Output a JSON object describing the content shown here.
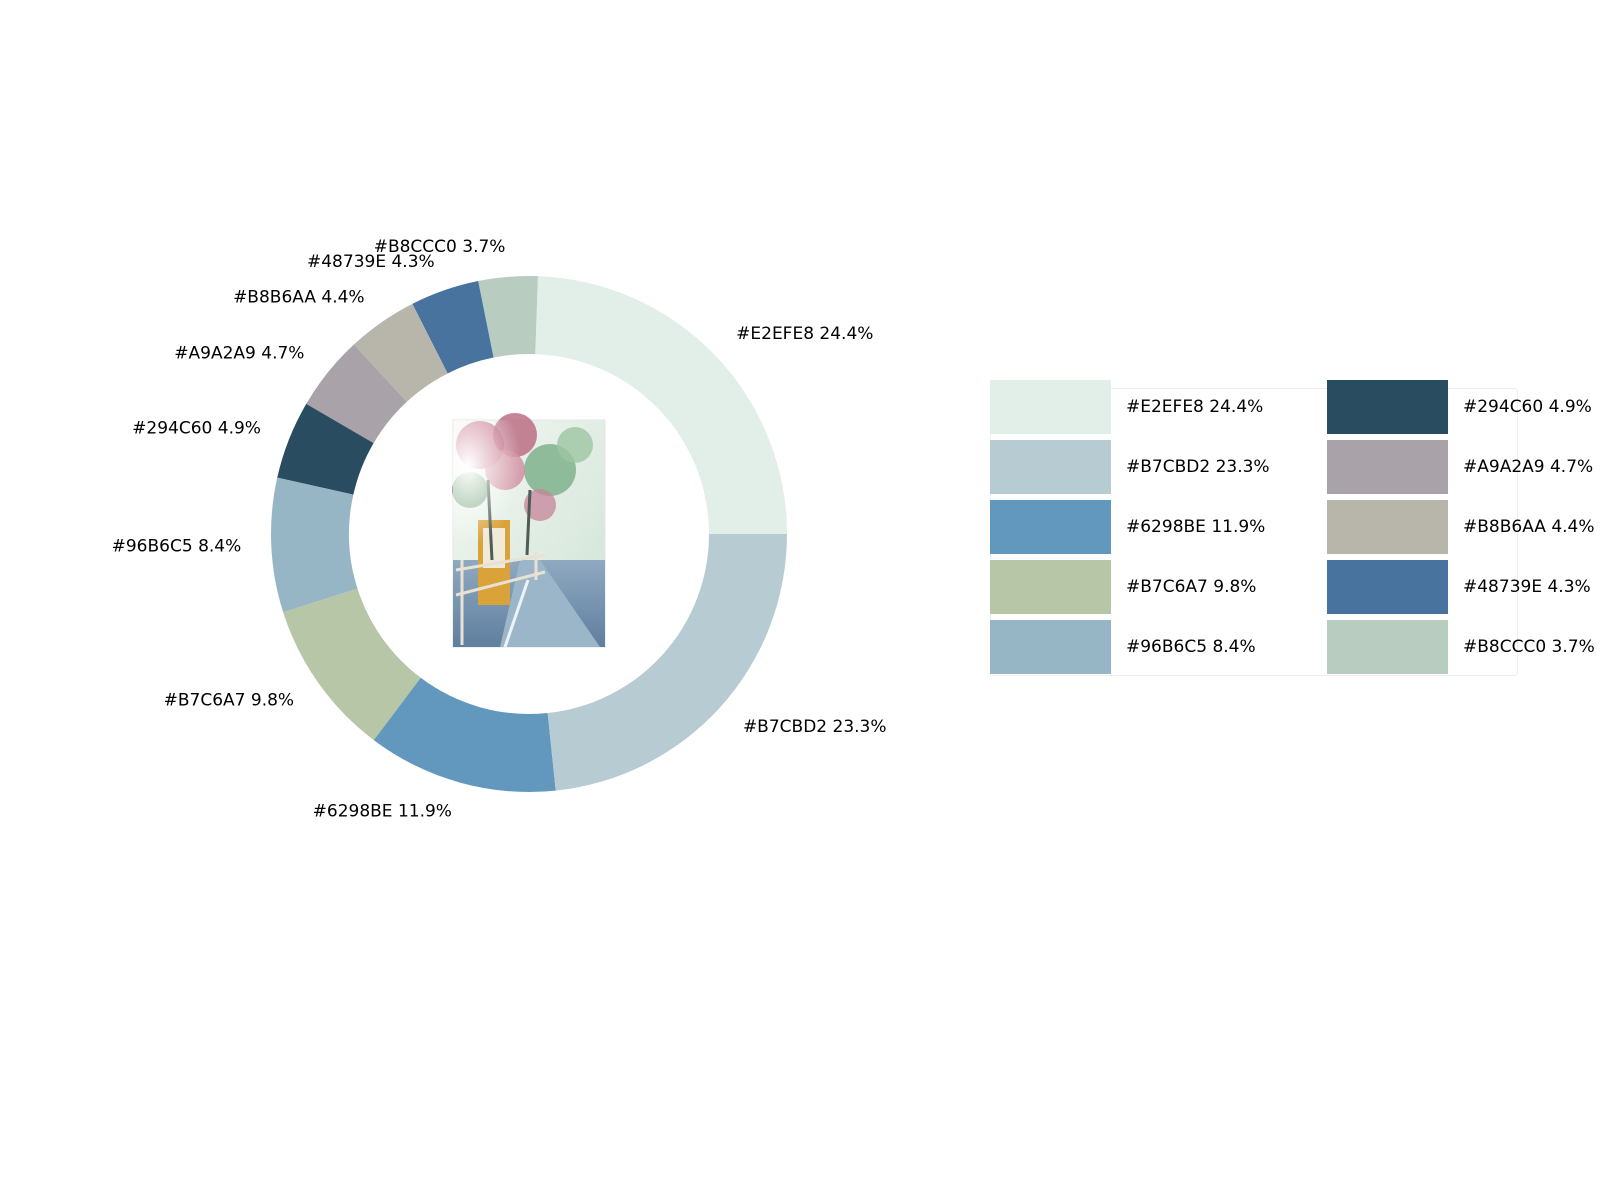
{
  "chart_data": {
    "type": "pie",
    "variant": "donut",
    "center_image": "autumn tree-lined road photo",
    "slices": [
      {
        "label": "#E2EFE8 24.4%",
        "color": "#E2EFE8",
        "value": 24.4
      },
      {
        "label": "#B8CCC0 3.7%",
        "color": "#B8CCC0",
        "value": 3.7
      },
      {
        "label": "#48739E 4.3%",
        "color": "#48739E",
        "value": 4.3
      },
      {
        "label": "#B8B6AA 4.4%",
        "color": "#B8B6AA",
        "value": 4.4
      },
      {
        "label": "#A9A2A9 4.7%",
        "color": "#A9A2A9",
        "value": 4.7
      },
      {
        "label": "#294C60 4.9%",
        "color": "#294C60",
        "value": 4.9
      },
      {
        "label": "#96B6C5 8.4%",
        "color": "#96B6C5",
        "value": 8.4
      },
      {
        "label": "#B7C6A7 9.8%",
        "color": "#B7C6A7",
        "value": 9.8
      },
      {
        "label": "#6298BE 11.9%",
        "color": "#6298BE",
        "value": 11.9
      },
      {
        "label": "#B7CBD2 23.3%",
        "color": "#B7CBD2",
        "value": 23.3
      }
    ],
    "legend": [
      {
        "label": "#E2EFE8 24.4%",
        "color": "#E2EFE8"
      },
      {
        "label": "#B7CBD2 23.3%",
        "color": "#B7CBD2"
      },
      {
        "label": "#6298BE 11.9%",
        "color": "#6298BE"
      },
      {
        "label": "#B7C6A7 9.8%",
        "color": "#B7C6A7"
      },
      {
        "label": "#96B6C5 8.4%",
        "color": "#96B6C5"
      },
      {
        "label": "#294C60 4.9%",
        "color": "#294C60"
      },
      {
        "label": "#A9A2A9 4.7%",
        "color": "#A9A2A9"
      },
      {
        "label": "#B8B6AA 4.4%",
        "color": "#B8B6AA"
      },
      {
        "label": "#48739E 4.3%",
        "color": "#48739E"
      },
      {
        "label": "#B8CCC0 3.7%",
        "color": "#B8CCC0"
      }
    ],
    "legend_placement": "right"
  }
}
